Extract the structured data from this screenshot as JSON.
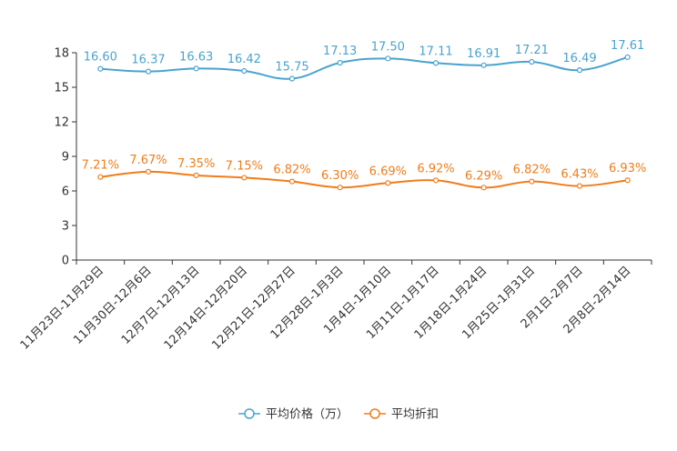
{
  "chart_data": {
    "type": "line",
    "title": "",
    "categories": [
      "11月23日-11月29日",
      "11月30日-12月6日",
      "12月7日-12月13日",
      "12月14日-12月20日",
      "12月21日-12月27日",
      "12月28日-1月3日",
      "1月4日-1月10日",
      "1月11日-1月17日",
      "1月18日-1月24日",
      "1月25日-1月31日",
      "2月1日-2月7日",
      "2月8日-2月14日"
    ],
    "series": [
      {
        "name": "平均价格（万）",
        "color": "#4aa3cf",
        "values": [
          16.6,
          16.37,
          16.63,
          16.42,
          15.75,
          17.13,
          17.5,
          17.11,
          16.91,
          17.21,
          16.49,
          17.61
        ],
        "labels": [
          "16.60",
          "16.37",
          "16.63",
          "16.42",
          "15.75",
          "17.13",
          "17.50",
          "17.11",
          "16.91",
          "17.21",
          "16.49",
          "17.61"
        ]
      },
      {
        "name": "平均折扣",
        "color": "#f07d1a",
        "values": [
          7.21,
          7.67,
          7.35,
          7.15,
          6.82,
          6.3,
          6.69,
          6.92,
          6.29,
          6.82,
          6.43,
          6.93
        ],
        "labels": [
          "7.21%",
          "7.67%",
          "7.35%",
          "7.15%",
          "6.82%",
          "6.30%",
          "6.69%",
          "6.92%",
          "6.29%",
          "6.82%",
          "6.43%",
          "6.93%"
        ]
      }
    ],
    "y_ticks": [
      0,
      3,
      6,
      9,
      12,
      15,
      18
    ],
    "y_tick_labels": [
      "0",
      "3",
      "6",
      "9",
      "12",
      "15",
      "18"
    ],
    "ylim": [
      0,
      18
    ],
    "xlabel": "",
    "ylabel": "",
    "grid": false,
    "legend_position": "bottom-center"
  }
}
